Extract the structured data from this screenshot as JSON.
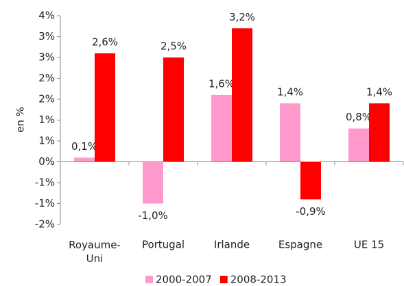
{
  "chart_data": {
    "type": "bar",
    "y_label": "en %",
    "categories": [
      "Royaume-Uni",
      "Portugal",
      "Irlande",
      "Espagne",
      "UE 15"
    ],
    "series": [
      {
        "name": "2000-2007",
        "color": "#ff99cc",
        "values": [
          0.1,
          -1.0,
          1.6,
          1.4,
          0.8
        ],
        "value_labels": [
          "0,1%",
          "-1,0%",
          "1,6%",
          "1,4%",
          "0,8%"
        ]
      },
      {
        "name": "2008-2013",
        "color": "#ff0000",
        "values": [
          2.6,
          2.5,
          3.2,
          -0.9,
          1.4
        ],
        "value_labels": [
          "2,6%",
          "2,5%",
          "3,2%",
          "-0,9%",
          "1,4%"
        ]
      }
    ],
    "ylim": [
      -1.5,
      3.5
    ],
    "yticks": [
      {
        "value": 3.5,
        "label": "4%"
      },
      {
        "value": 3,
        "label": "3%"
      },
      {
        "value": 2.5,
        "label": "3%"
      },
      {
        "value": 2,
        "label": "2%"
      },
      {
        "value": 1.5,
        "label": "2%"
      },
      {
        "value": 1,
        "label": "1%"
      },
      {
        "value": 0.5,
        "label": "1%"
      },
      {
        "value": 0,
        "label": "0%"
      },
      {
        "value": -0.5,
        "label": "-1%"
      },
      {
        "value": -1,
        "label": "-1%"
      },
      {
        "value": -1.5,
        "label": "-2%"
      }
    ],
    "grid": false
  }
}
